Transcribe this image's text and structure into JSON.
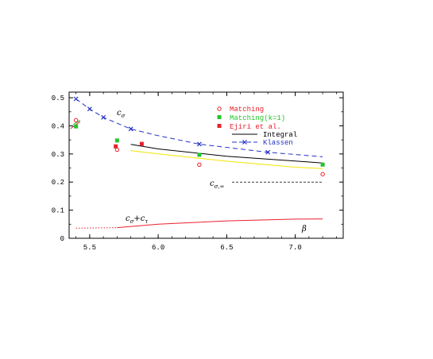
{
  "chart_data": {
    "type": "scatter",
    "xlim": [
      5.35,
      7.35
    ],
    "ylim": [
      0,
      0.52
    ],
    "xticks": [
      5.5,
      6.0,
      6.5,
      7.0
    ],
    "xtick_labels": [
      "5.5",
      "6.0",
      "6.5",
      "7.0"
    ],
    "yticks": [
      0,
      0.1,
      0.2,
      0.3,
      0.4,
      0.5
    ],
    "ytick_labels": [
      "0",
      "0.1",
      "0.2",
      "0.3",
      "0.4",
      "0.5"
    ],
    "grid": false,
    "legend_position": "top-right",
    "annotations": {
      "c_sigma": {
        "main": "c",
        "sub": "σ"
      },
      "c_sigma_inf": {
        "main": "c",
        "sub": "σ,∞"
      },
      "c_sum": {
        "main1": "c",
        "sub1": "σ",
        "plus": "+c",
        "sub2": "τ"
      },
      "beta": "β"
    },
    "c_sigma_inf_level": 0.2,
    "colors": {
      "red": "#e8212b",
      "green": "#22c52a",
      "blue": "#2330c8",
      "black": "#000000",
      "yellow": "#f2e600"
    },
    "series": [
      {
        "name": "Matching",
        "marker": "open-circle",
        "color": "#e8212b",
        "points": [
          {
            "x": 5.4,
            "y": 0.42,
            "err": 0.015
          },
          {
            "x": 5.7,
            "y": 0.315,
            "err": 0.01
          },
          {
            "x": 6.3,
            "y": 0.262,
            "err": 0.008
          },
          {
            "x": 7.2,
            "y": 0.228,
            "err": 0.015
          }
        ]
      },
      {
        "name": "Matching(k=1)",
        "marker": "filled-square",
        "color": "#22c52a",
        "points": [
          {
            "x": 5.4,
            "y": 0.398,
            "err": 0.012
          },
          {
            "x": 5.7,
            "y": 0.348,
            "err": 0.0
          },
          {
            "x": 6.3,
            "y": 0.297,
            "err": 0.0
          },
          {
            "x": 7.2,
            "y": 0.262,
            "err": 0.01
          }
        ]
      },
      {
        "name": "Ejiri et al.",
        "marker": "filled-square",
        "color": "#e8212b",
        "points": [
          {
            "x": 5.69,
            "y": 0.327,
            "err": 0.0
          },
          {
            "x": 5.88,
            "y": 0.336,
            "err": 0.008
          }
        ]
      },
      {
        "name": "Integral",
        "marker": "line",
        "color": "#000000",
        "points": [
          {
            "x": 5.8,
            "y": 0.334
          },
          {
            "x": 6.0,
            "y": 0.318
          },
          {
            "x": 6.5,
            "y": 0.292
          },
          {
            "x": 7.0,
            "y": 0.275
          },
          {
            "x": 7.2,
            "y": 0.268
          }
        ]
      },
      {
        "name": "Klassen",
        "marker": "cross-dashed",
        "color": "#2330c8",
        "points": [
          {
            "x": 5.4,
            "y": 0.496,
            "err": 0.018
          },
          {
            "x": 5.5,
            "y": 0.46,
            "err": 0.01
          },
          {
            "x": 5.6,
            "y": 0.43,
            "err": 0.008
          },
          {
            "x": 5.8,
            "y": 0.389,
            "err": 0.006
          },
          {
            "x": 6.3,
            "y": 0.335,
            "err": 0.004
          },
          {
            "x": 6.8,
            "y": 0.306,
            "err": 0.003
          }
        ],
        "curve": [
          {
            "x": 5.4,
            "y": 0.496
          },
          {
            "x": 5.5,
            "y": 0.46
          },
          {
            "x": 5.6,
            "y": 0.43
          },
          {
            "x": 5.8,
            "y": 0.389
          },
          {
            "x": 6.0,
            "y": 0.365
          },
          {
            "x": 6.3,
            "y": 0.335
          },
          {
            "x": 6.8,
            "y": 0.306
          },
          {
            "x": 7.2,
            "y": 0.29
          }
        ]
      }
    ],
    "extra_curves": [
      {
        "label": "yellow",
        "color": "#f2e600",
        "style": "solid",
        "points": [
          {
            "x": 5.8,
            "y": 0.312
          },
          {
            "x": 6.0,
            "y": 0.3
          },
          {
            "x": 6.5,
            "y": 0.274
          },
          {
            "x": 7.0,
            "y": 0.253
          },
          {
            "x": 7.2,
            "y": 0.248
          }
        ]
      },
      {
        "label": "red-low",
        "color": "#e8212b",
        "style": "solid",
        "points": [
          {
            "x": 5.7,
            "y": 0.038
          },
          {
            "x": 6.0,
            "y": 0.05
          },
          {
            "x": 6.5,
            "y": 0.062
          },
          {
            "x": 7.0,
            "y": 0.068
          },
          {
            "x": 7.2,
            "y": 0.069
          }
        ]
      },
      {
        "label": "red-low-dotted",
        "color": "#e8212b",
        "style": "dotted",
        "points": [
          {
            "x": 5.4,
            "y": 0.036
          },
          {
            "x": 5.7,
            "y": 0.038
          }
        ]
      },
      {
        "label": "red-stub",
        "color": "#e8212b",
        "style": "solid",
        "points": [
          {
            "x": 5.36,
            "y": 0.39
          },
          {
            "x": 5.43,
            "y": 0.415
          }
        ]
      },
      {
        "label": "green-stub",
        "color": "#22c52a",
        "style": "solid",
        "points": [
          {
            "x": 5.38,
            "y": 0.405
          },
          {
            "x": 5.43,
            "y": 0.42
          }
        ]
      }
    ]
  }
}
